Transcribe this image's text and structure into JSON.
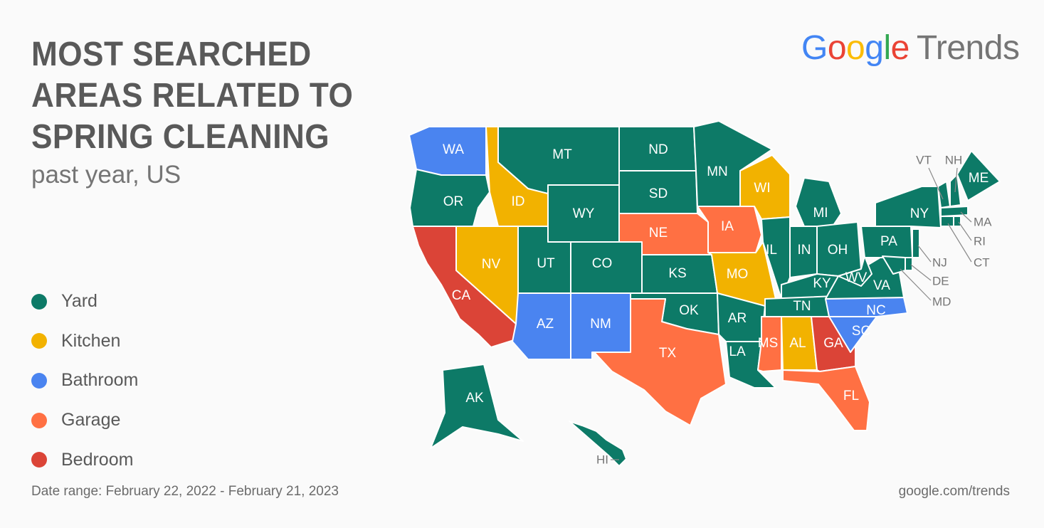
{
  "title": "MOST SEARCHED AREAS RELATED TO SPRING CLEANING",
  "subtitle": "past year, US",
  "brand": {
    "google": "Google",
    "trends": "Trends"
  },
  "footer": {
    "date_range": "Date range: February 22, 2022 - February 21, 2023",
    "url": "google.com/trends"
  },
  "colors": {
    "Yard": "#0d7a67",
    "Kitchen": "#f2b200",
    "Bathroom": "#4a84f0",
    "Garage": "#ff7043",
    "Bedroom": "#db4437"
  },
  "legend": [
    {
      "label": "Yard",
      "color": "#0d7a67"
    },
    {
      "label": "Kitchen",
      "color": "#f2b200"
    },
    {
      "label": "Bathroom",
      "color": "#4a84f0"
    },
    {
      "label": "Garage",
      "color": "#ff7043"
    },
    {
      "label": "Bedroom",
      "color": "#db4437"
    }
  ],
  "states": [
    {
      "abbr": "WA",
      "category": "Bathroom"
    },
    {
      "abbr": "OR",
      "category": "Yard"
    },
    {
      "abbr": "CA",
      "category": "Bedroom"
    },
    {
      "abbr": "ID",
      "category": "Kitchen"
    },
    {
      "abbr": "NV",
      "category": "Kitchen"
    },
    {
      "abbr": "MT",
      "category": "Yard"
    },
    {
      "abbr": "WY",
      "category": "Yard"
    },
    {
      "abbr": "UT",
      "category": "Yard"
    },
    {
      "abbr": "AZ",
      "category": "Bathroom"
    },
    {
      "abbr": "CO",
      "category": "Yard"
    },
    {
      "abbr": "NM",
      "category": "Bathroom"
    },
    {
      "abbr": "ND",
      "category": "Yard"
    },
    {
      "abbr": "SD",
      "category": "Yard"
    },
    {
      "abbr": "NE",
      "category": "Garage"
    },
    {
      "abbr": "KS",
      "category": "Yard"
    },
    {
      "abbr": "OK",
      "category": "Yard"
    },
    {
      "abbr": "TX",
      "category": "Garage"
    },
    {
      "abbr": "MN",
      "category": "Yard"
    },
    {
      "abbr": "IA",
      "category": "Garage"
    },
    {
      "abbr": "MO",
      "category": "Kitchen"
    },
    {
      "abbr": "AR",
      "category": "Yard"
    },
    {
      "abbr": "LA",
      "category": "Yard"
    },
    {
      "abbr": "WI",
      "category": "Kitchen"
    },
    {
      "abbr": "IL",
      "category": "Yard"
    },
    {
      "abbr": "MI",
      "category": "Yard"
    },
    {
      "abbr": "IN",
      "category": "Yard"
    },
    {
      "abbr": "OH",
      "category": "Yard"
    },
    {
      "abbr": "KY",
      "category": "Yard"
    },
    {
      "abbr": "TN",
      "category": "Yard"
    },
    {
      "abbr": "MS",
      "category": "Garage"
    },
    {
      "abbr": "AL",
      "category": "Kitchen"
    },
    {
      "abbr": "GA",
      "category": "Bedroom"
    },
    {
      "abbr": "FL",
      "category": "Garage"
    },
    {
      "abbr": "SC",
      "category": "Bathroom"
    },
    {
      "abbr": "NC",
      "category": "Bathroom"
    },
    {
      "abbr": "VA",
      "category": "Yard"
    },
    {
      "abbr": "WV",
      "category": "Yard"
    },
    {
      "abbr": "PA",
      "category": "Yard"
    },
    {
      "abbr": "NY",
      "category": "Yard"
    },
    {
      "abbr": "ME",
      "category": "Yard"
    },
    {
      "abbr": "VT",
      "category": "Yard"
    },
    {
      "abbr": "NH",
      "category": "Yard"
    },
    {
      "abbr": "MA",
      "category": "Yard"
    },
    {
      "abbr": "RI",
      "category": "Yard"
    },
    {
      "abbr": "CT",
      "category": "Yard"
    },
    {
      "abbr": "NJ",
      "category": "Yard"
    },
    {
      "abbr": "DE",
      "category": "Yard"
    },
    {
      "abbr": "MD",
      "category": "Yard"
    },
    {
      "abbr": "AK",
      "category": "Yard"
    },
    {
      "abbr": "HI",
      "category": "Yard"
    }
  ]
}
